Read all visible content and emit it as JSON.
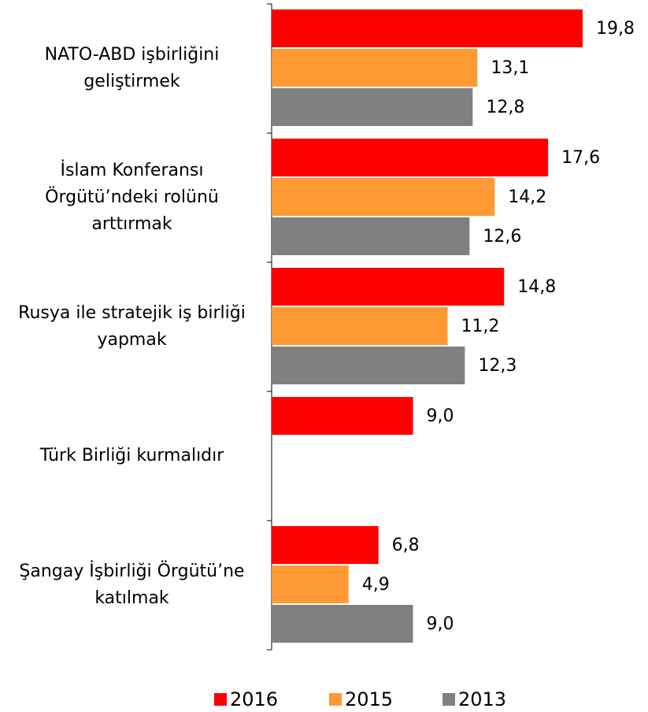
{
  "chart_data": {
    "type": "bar",
    "orientation": "horizontal",
    "categories": [
      "NATO-ABD işbirliğini geliştirmek",
      "İslam Konferansı Örgütü’ndeki rolünü arttırmak",
      "Rusya ile stratejik iş birliği yapmak",
      "Türk Birliği kurmalıdır",
      "Şangay İşbirliği Örgütü’ne katılmak"
    ],
    "series": [
      {
        "name": "2016",
        "color": "#ff0000",
        "values": [
          19.8,
          17.6,
          14.8,
          9.0,
          6.8
        ],
        "value_labels": [
          "19,8",
          "17,6",
          "14,8",
          "9,0",
          "6,8"
        ]
      },
      {
        "name": "2015",
        "color": "#ff9933",
        "values": [
          13.1,
          14.2,
          11.2,
          null,
          4.9
        ],
        "value_labels": [
          "13,1",
          "14,2",
          "11,2",
          null,
          "4,9"
        ]
      },
      {
        "name": "2013",
        "color": "#808080",
        "values": [
          12.8,
          12.6,
          12.3,
          null,
          9.0
        ],
        "value_labels": [
          "12,8",
          "12,6",
          "12,3",
          null,
          "9,0"
        ]
      }
    ],
    "xlim": [
      0,
      20
    ],
    "legend": "bottom"
  }
}
